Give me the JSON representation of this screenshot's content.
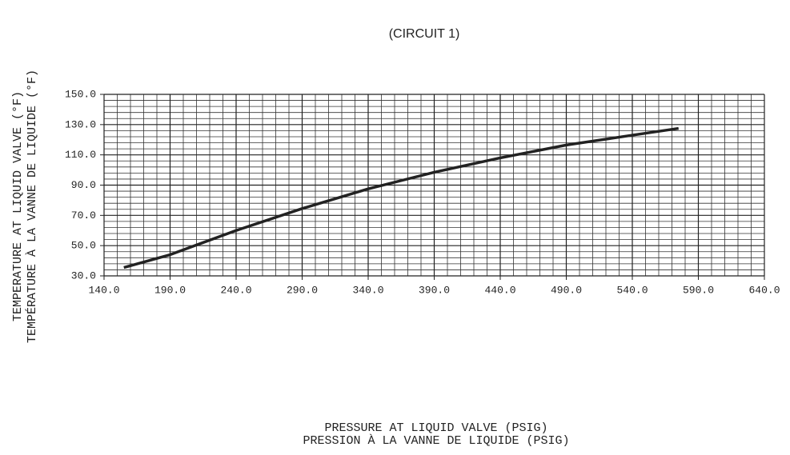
{
  "chart_data": {
    "type": "line",
    "title": "(CIRCUIT 1)",
    "x_label": [
      "PRESSURE AT LIQUID VALVE (PSIG)",
      "PRESSION À LA VANNE DE LIQUIDE (PSIG)"
    ],
    "y_label": [
      "TEMPERATURE AT LIQUID VALVE (°F)",
      "TEMPÉRATURE À LA VANNE DE LIQUIDE (°F)"
    ],
    "x": [
      155,
      190,
      240,
      290,
      340,
      390,
      440,
      490,
      540,
      575
    ],
    "series": [
      {
        "name": "Circuit 1",
        "color": "#222222",
        "values": [
          35.5,
          44,
          60,
          74.5,
          87.5,
          98.5,
          108,
          116.5,
          123,
          127.5
        ]
      }
    ],
    "xlim": [
      140,
      640
    ],
    "xticks": [
      {
        "value": 140,
        "label": "140.0"
      },
      {
        "value": 190,
        "label": "190.0"
      },
      {
        "value": 240,
        "label": "240.0"
      },
      {
        "value": 290,
        "label": "290.0"
      },
      {
        "value": 340,
        "label": "340.0"
      },
      {
        "value": 390,
        "label": "390.0"
      },
      {
        "value": 440,
        "label": "440.0"
      },
      {
        "value": 490,
        "label": "490.0"
      },
      {
        "value": 540,
        "label": "540.0"
      },
      {
        "value": 590,
        "label": "590.0"
      },
      {
        "value": 640,
        "label": "640.0"
      }
    ],
    "ylim": [
      30,
      150
    ],
    "yticks": [
      {
        "value": 30,
        "label": "30.0"
      },
      {
        "value": 50,
        "label": "50.0"
      },
      {
        "value": 70,
        "label": "70.0"
      },
      {
        "value": 90,
        "label": "90.0"
      },
      {
        "value": 110,
        "label": "110.0"
      },
      {
        "value": 130,
        "label": "130.0"
      },
      {
        "value": 150,
        "label": "150.0"
      }
    ],
    "grid": true
  }
}
